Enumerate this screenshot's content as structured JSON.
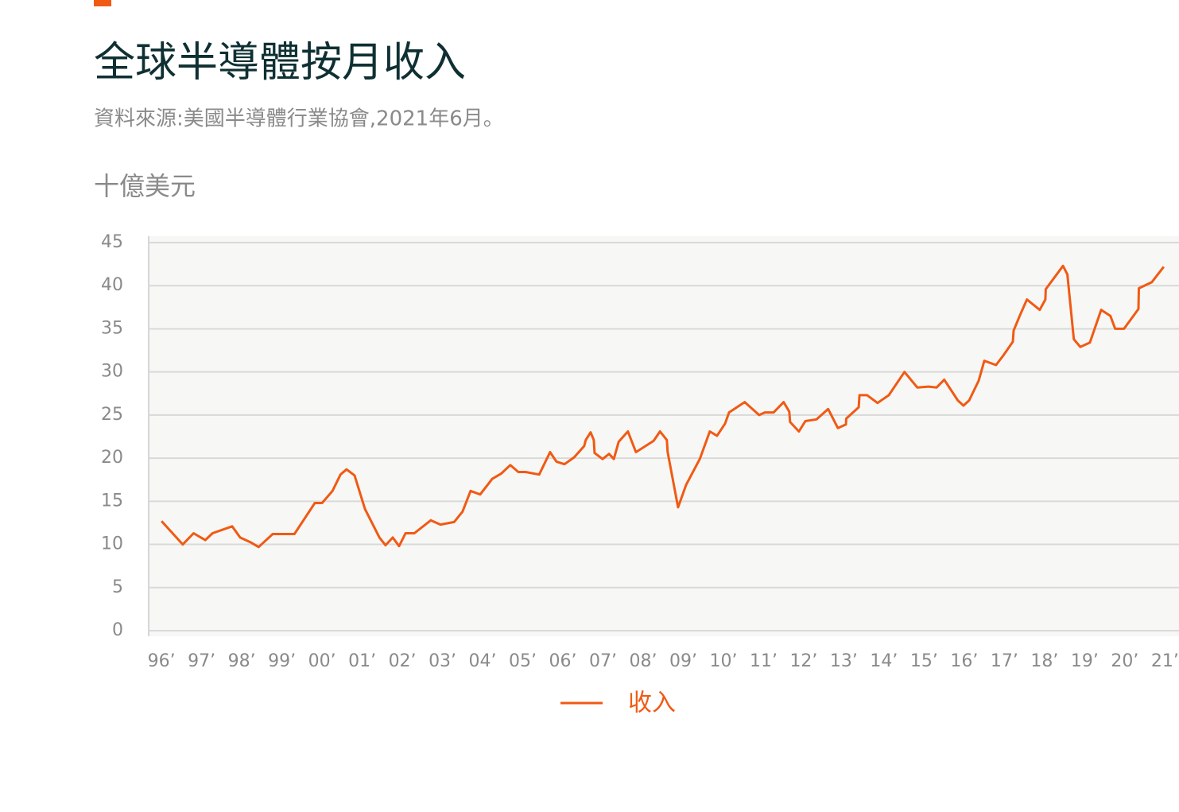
{
  "chart_data": {
    "type": "line",
    "title": "全球半導體按月收入",
    "subtitle": "資料來源:美國半導體行業協會,2021年6月。",
    "y_label": "十億美元",
    "x": [
      1996.0,
      1996.53,
      1996.8,
      1997.09,
      1997.27,
      1997.76,
      1997.96,
      1998.24,
      1998.42,
      1998.77,
      1999.31,
      1999.82,
      2000.0,
      2000.26,
      2000.46,
      2000.61,
      2000.81,
      2001.07,
      2001.43,
      2001.58,
      2001.76,
      2001.92,
      2002.08,
      2002.3,
      2002.71,
      2002.95,
      2003.29,
      2003.5,
      2003.7,
      2003.94,
      2004.24,
      2004.46,
      2004.69,
      2004.89,
      2005.07,
      2005.41,
      2005.68,
      2005.84,
      2006.04,
      2006.28,
      2006.53,
      2006.57,
      2006.69,
      2006.77,
      2006.79,
      2006.99,
      2007.15,
      2007.27,
      2007.39,
      2007.62,
      2007.82,
      2008.26,
      2008.42,
      2008.59,
      2008.61,
      2008.87,
      2009.07,
      2009.41,
      2009.66,
      2009.84,
      2010.04,
      2010.14,
      2010.53,
      2010.89,
      2011.03,
      2011.25,
      2011.5,
      2011.64,
      2011.66,
      2011.88,
      2012.04,
      2012.32,
      2012.61,
      2012.85,
      2013.05,
      2013.06,
      2013.37,
      2013.39,
      2013.58,
      2013.84,
      2014.12,
      2014.51,
      2014.83,
      2015.11,
      2015.31,
      2015.5,
      2015.84,
      2015.98,
      2016.12,
      2016.36,
      2016.5,
      2016.79,
      2016.97,
      2017.21,
      2017.23,
      2017.39,
      2017.56,
      2017.88,
      2018.02,
      2018.03,
      2018.46,
      2018.57,
      2018.73,
      2018.89,
      2019.13,
      2019.41,
      2019.64,
      2019.76,
      2019.98,
      2020.34,
      2020.35,
      2020.67,
      2020.97
    ],
    "series": [
      {
        "name": "收入",
        "color": "#f05a14",
        "values": [
          12.7,
          10.0,
          11.3,
          10.5,
          11.3,
          12.1,
          10.8,
          10.2,
          9.7,
          11.2,
          11.2,
          14.8,
          14.8,
          16.2,
          18.1,
          18.7,
          18.0,
          14.1,
          10.8,
          9.9,
          10.8,
          9.8,
          11.3,
          11.3,
          12.8,
          12.3,
          12.6,
          13.8,
          16.2,
          15.8,
          17.6,
          18.2,
          19.2,
          18.4,
          18.4,
          18.1,
          20.7,
          19.6,
          19.3,
          20.1,
          21.4,
          22.1,
          23.0,
          22.1,
          20.6,
          19.9,
          20.5,
          19.9,
          21.9,
          23.1,
          20.7,
          22.0,
          23.1,
          22.1,
          20.7,
          14.3,
          16.9,
          19.9,
          23.1,
          22.6,
          24.0,
          25.3,
          26.5,
          25.0,
          25.3,
          25.3,
          26.5,
          25.4,
          24.2,
          23.1,
          24.3,
          24.5,
          25.7,
          23.5,
          23.9,
          24.6,
          25.9,
          27.3,
          27.3,
          26.4,
          27.3,
          30.0,
          28.2,
          28.3,
          28.2,
          29.1,
          26.7,
          26.1,
          26.7,
          29.0,
          31.3,
          30.8,
          31.9,
          33.5,
          34.8,
          36.6,
          38.4,
          37.2,
          38.4,
          39.6,
          42.3,
          41.3,
          33.8,
          32.9,
          33.4,
          37.2,
          36.5,
          35.0,
          35.0,
          37.3,
          39.7,
          40.4,
          42.2
        ]
      }
    ],
    "xlim": [
      1995.68,
      2021.35
    ],
    "xticks": [
      {
        "value": 1996,
        "label": "96’"
      },
      {
        "value": 1997,
        "label": "97’"
      },
      {
        "value": 1998,
        "label": "98’"
      },
      {
        "value": 1999,
        "label": "99’"
      },
      {
        "value": 2000,
        "label": "00’"
      },
      {
        "value": 2001,
        "label": "01’"
      },
      {
        "value": 2002,
        "label": "02’"
      },
      {
        "value": 2003,
        "label": "03’"
      },
      {
        "value": 2004,
        "label": "04’"
      },
      {
        "value": 2005,
        "label": "05’"
      },
      {
        "value": 2006,
        "label": "06’"
      },
      {
        "value": 2007,
        "label": "07’"
      },
      {
        "value": 2008,
        "label": "08’"
      },
      {
        "value": 2009,
        "label": "09’"
      },
      {
        "value": 2010,
        "label": "10’"
      },
      {
        "value": 2011,
        "label": "11’"
      },
      {
        "value": 2012,
        "label": "12’"
      },
      {
        "value": 2013,
        "label": "13’"
      },
      {
        "value": 2014,
        "label": "14’"
      },
      {
        "value": 2015,
        "label": "15’"
      },
      {
        "value": 2016,
        "label": "16’"
      },
      {
        "value": 2017,
        "label": "17’"
      },
      {
        "value": 2018,
        "label": "18’"
      },
      {
        "value": 2019,
        "label": "19’"
      },
      {
        "value": 2020,
        "label": "20’"
      },
      {
        "value": 2021,
        "label": "21’"
      }
    ],
    "ylim": [
      0,
      45
    ],
    "yticks": [
      0,
      5,
      10,
      15,
      20,
      25,
      30,
      35,
      40,
      45
    ],
    "grid": true
  }
}
